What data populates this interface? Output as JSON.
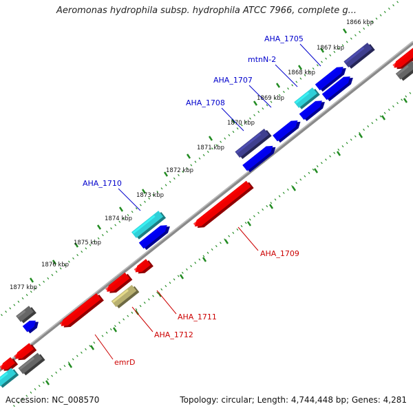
{
  "title": "Aeromonas hydrophila subsp. hydrophila ATCC 7966, complete g...",
  "footer": {
    "accession": "Accession: NC_008570",
    "summary": "Topology: circular; Length: 4,744,448 bp; Genes: 4,281"
  },
  "colors": {
    "backbone": "#888888",
    "tick": "#228B22",
    "gene_blue": "#0000ee",
    "gene_dark": "#3f3f8f",
    "gene_cyan": "#2fd0d8",
    "gene_red": "#ee0000",
    "gene_gray": "#666666",
    "gene_khaki": "#b8b070",
    "label_blue": "#0000cc",
    "label_red": "#cc0000"
  },
  "kbp_labels": [
    "1866 kbp",
    "1867 kbp",
    "1868 kbp",
    "1869 kbp",
    "1870 kbp",
    "1871 kbp",
    "1872 kbp",
    "1873 kbp",
    "1874 kbp",
    "1875 kbp",
    "1876 kbp",
    "1877 kbp"
  ],
  "genes": [
    {
      "name": "AHA_1705",
      "strand": "+",
      "color": "gene_blue"
    },
    {
      "name": "mtnN-2",
      "strand": "+",
      "color": "gene_cyan"
    },
    {
      "name": "AHA_1707",
      "strand": "+",
      "color": "gene_blue"
    },
    {
      "name": "AHA_1708",
      "strand": "+",
      "color": "gene_blue"
    },
    {
      "name": "AHA_1709",
      "strand": "-",
      "color": "gene_red"
    },
    {
      "name": "AHA_1710",
      "strand": "+",
      "color": "gene_cyan"
    },
    {
      "name": "AHA_1711",
      "strand": "-",
      "color": "gene_red"
    },
    {
      "name": "AHA_1712",
      "strand": "-",
      "color": "gene_khaki"
    },
    {
      "name": "emrD",
      "strand": "-",
      "color": "gene_red"
    }
  ]
}
